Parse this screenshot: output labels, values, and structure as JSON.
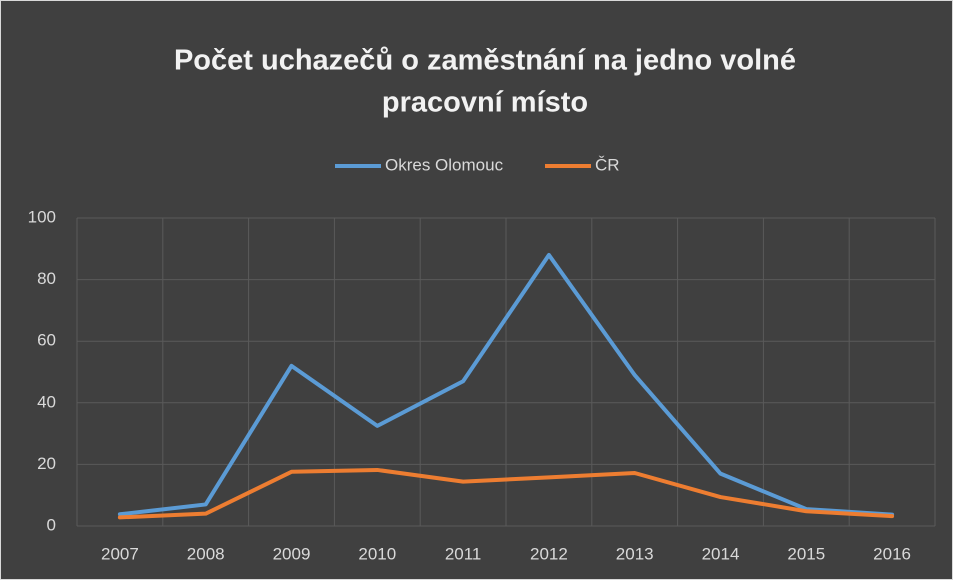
{
  "chart_data": {
    "type": "line",
    "title": [
      "Počet uchazečů o zaměstnání na jedno volné",
      "pracovní místo"
    ],
    "categories": [
      "2007",
      "2008",
      "2009",
      "2010",
      "2011",
      "2012",
      "2013",
      "2014",
      "2015",
      "2016"
    ],
    "series": [
      {
        "name": "Okres Olomouc",
        "color": "#5b9bd5",
        "values": [
          3.8,
          7,
          52,
          32.5,
          47,
          88,
          49,
          17,
          5.5,
          3.7
        ]
      },
      {
        "name": "ČR",
        "color": "#ed7d31",
        "values": [
          2.8,
          4,
          17.6,
          18.2,
          14.4,
          15.8,
          17.2,
          9.4,
          4.8,
          3.2
        ]
      }
    ],
    "ylim": [
      0,
      100
    ],
    "yticks": [
      0,
      20,
      40,
      60,
      80,
      100
    ],
    "grid": true,
    "legend": "top"
  }
}
